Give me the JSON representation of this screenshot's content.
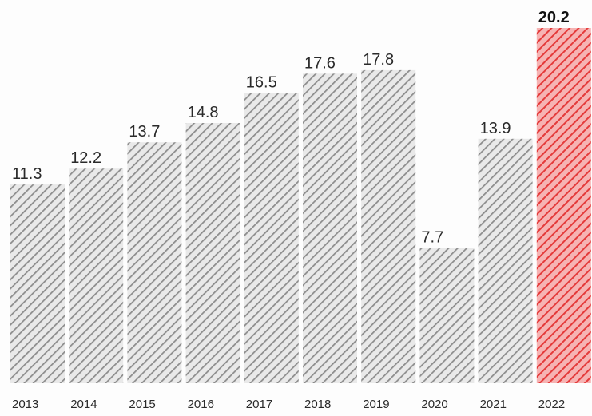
{
  "chart_data": {
    "type": "bar",
    "title": "",
    "xlabel": "",
    "ylabel": "",
    "categories": [
      "2013",
      "2014",
      "2015",
      "2016",
      "2017",
      "2018",
      "2019",
      "2020",
      "2021",
      "2022"
    ],
    "values": [
      11.3,
      12.2,
      13.7,
      14.8,
      16.5,
      17.6,
      17.8,
      7.7,
      13.9,
      20.2
    ],
    "value_labels": [
      "11.3",
      "12.2",
      "13.7",
      "14.8",
      "16.5",
      "17.6",
      "17.8",
      "7.7",
      "13.9",
      "20.2"
    ],
    "highlight_category": "2022",
    "ylim": [
      0,
      20.2
    ],
    "grid": false,
    "colors": {
      "bar": "#8c8c8c",
      "highlight": "#e43a3a",
      "label": "#2a2a2a"
    }
  }
}
